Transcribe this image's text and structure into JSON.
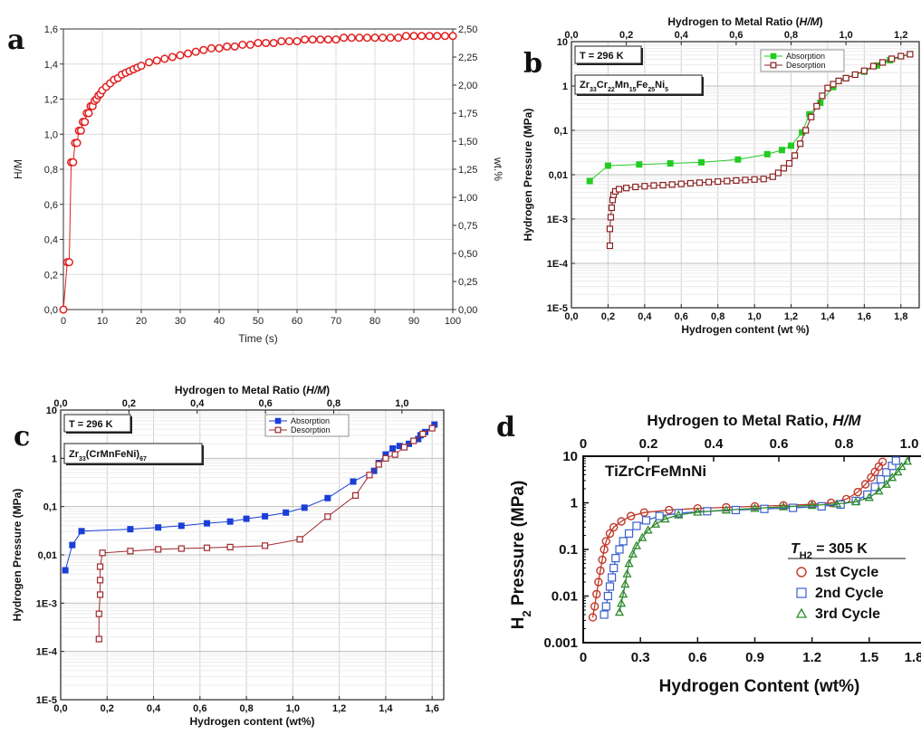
{
  "figure": {
    "panels": [
      {
        "id": "a",
        "label": "a"
      },
      {
        "id": "b",
        "label": "b"
      },
      {
        "id": "c",
        "label": "c"
      },
      {
        "id": "d",
        "label": "d"
      }
    ]
  },
  "chart_data": [
    {
      "id": "a",
      "type": "scatter",
      "title": "",
      "xlabel": "Time (s)",
      "ylabel": "H/M",
      "ylabel_right": "wt.%",
      "xlim": [
        0,
        100
      ],
      "ylim": [
        0,
        1.6
      ],
      "xticks": [
        "0",
        "10",
        "20",
        "30",
        "40",
        "50",
        "60",
        "70",
        "80",
        "90",
        "100"
      ],
      "yticks": [
        "0,0",
        "0,2",
        "0,4",
        "0,6",
        "0,8",
        "1,0",
        "1,2",
        "1,4",
        "1,6"
      ],
      "yticks_right": [
        "0,00",
        "0,25",
        "0,50",
        "0,75",
        "1,00",
        "1,25",
        "1,50",
        "1,75",
        "2,00",
        "2,25",
        "2,50"
      ],
      "grid": true,
      "series_color": "#e02020",
      "series": [
        {
          "x": [
            0,
            1,
            1.5,
            2,
            2.5,
            3,
            3.5,
            4,
            4.5,
            5,
            5.5,
            6,
            6.5,
            7,
            7.5,
            8,
            8.5,
            9,
            9.5,
            10,
            11,
            12,
            13,
            14,
            15,
            16,
            17,
            18,
            19,
            20,
            22,
            24,
            26,
            28,
            30,
            32,
            34,
            36,
            38,
            40,
            42,
            44,
            46,
            48,
            50,
            52,
            54,
            56,
            58,
            60,
            62,
            64,
            66,
            68,
            70,
            72,
            74,
            76,
            78,
            80,
            82,
            84,
            86,
            88,
            90,
            92,
            94,
            96,
            98,
            100
          ],
          "y": [
            0,
            0.27,
            0.27,
            0.84,
            0.84,
            0.95,
            0.95,
            1.02,
            1.02,
            1.07,
            1.07,
            1.12,
            1.12,
            1.16,
            1.16,
            1.19,
            1.2,
            1.22,
            1.23,
            1.25,
            1.27,
            1.29,
            1.31,
            1.32,
            1.34,
            1.35,
            1.36,
            1.37,
            1.38,
            1.39,
            1.41,
            1.42,
            1.43,
            1.44,
            1.45,
            1.46,
            1.47,
            1.48,
            1.49,
            1.49,
            1.5,
            1.5,
            1.51,
            1.51,
            1.52,
            1.52,
            1.52,
            1.53,
            1.53,
            1.53,
            1.54,
            1.54,
            1.54,
            1.54,
            1.54,
            1.55,
            1.55,
            1.55,
            1.55,
            1.55,
            1.55,
            1.55,
            1.55,
            1.56,
            1.56,
            1.56,
            1.56,
            1.56,
            1.56,
            1.56
          ]
        }
      ]
    },
    {
      "id": "b",
      "type": "line",
      "title": "",
      "xlabel": "Hydrogen content (wt %)",
      "ylabel": "Hydrogen Pressure (MPa)",
      "xlabel_top": "Hydrogen to Metal Ratio (H/M)",
      "xlabel_top_main": "Hydrogen to Metal Ratio (",
      "xlabel_top_italic": "H/M",
      "xlabel_top_end": ")",
      "y_scale": "log",
      "xlim": [
        0,
        1.9
      ],
      "ylim": [
        1e-05,
        10
      ],
      "xticks": [
        "0,0",
        "0,2",
        "0,4",
        "0,6",
        "0,8",
        "1,0",
        "1,2",
        "1,4",
        "1,6",
        "1,8"
      ],
      "xticks_top": [
        "0,0",
        "0,2",
        "0,4",
        "0,6",
        "0,8",
        "1,0",
        "1,2"
      ],
      "yticks": [
        "1E-5",
        "1E-4",
        "1E-3",
        "0,01",
        "0,1",
        "1",
        "10"
      ],
      "annotation_temp": "T = 296 K",
      "annotation_alloy": "Zr33Cr22Mn15Fe25Ni5",
      "alloy_parts": [
        [
          "Zr",
          ""
        ],
        [
          "33",
          "sub"
        ],
        [
          "Cr",
          ""
        ],
        [
          "22",
          "sub"
        ],
        [
          "Mn",
          ""
        ],
        [
          "15",
          "sub"
        ],
        [
          "Fe",
          ""
        ],
        [
          "25",
          "sub"
        ],
        [
          "Ni",
          ""
        ],
        [
          "5",
          "sub"
        ]
      ],
      "legend_position": "top-right",
      "series": [
        {
          "name": "Absorption",
          "color": "#22cc22",
          "marker": "filled-square",
          "x": [
            0.1,
            0.2,
            0.37,
            0.54,
            0.71,
            0.91,
            1.07,
            1.15,
            1.2,
            1.26,
            1.3,
            1.36,
            1.43,
            1.46,
            1.5,
            1.55,
            1.6,
            1.67,
            1.74,
            1.85
          ],
          "y": [
            0.0072,
            0.016,
            0.017,
            0.018,
            0.019,
            0.022,
            0.029,
            0.036,
            0.045,
            0.09,
            0.23,
            0.42,
            0.95,
            1.3,
            1.5,
            1.8,
            2.1,
            2.9,
            3.8,
            5.2
          ]
        },
        {
          "name": "Desorption",
          "color": "#8b2020",
          "marker": "open-square",
          "x": [
            0.21,
            0.21,
            0.215,
            0.22,
            0.225,
            0.23,
            0.24,
            0.26,
            0.3,
            0.35,
            0.4,
            0.45,
            0.5,
            0.55,
            0.6,
            0.65,
            0.7,
            0.75,
            0.8,
            0.85,
            0.9,
            0.95,
            1.0,
            1.05,
            1.1,
            1.13,
            1.16,
            1.19,
            1.22,
            1.25,
            1.28,
            1.31,
            1.34,
            1.37,
            1.4,
            1.43,
            1.46,
            1.5,
            1.55,
            1.6,
            1.65,
            1.7,
            1.75,
            1.8,
            1.85
          ],
          "y": [
            0.00025,
            0.0006,
            0.0011,
            0.0018,
            0.0027,
            0.0035,
            0.0042,
            0.0047,
            0.005,
            0.0053,
            0.0055,
            0.0057,
            0.0058,
            0.006,
            0.0062,
            0.0064,
            0.0066,
            0.0068,
            0.007,
            0.0072,
            0.0074,
            0.0076,
            0.0078,
            0.008,
            0.009,
            0.011,
            0.014,
            0.018,
            0.027,
            0.05,
            0.1,
            0.2,
            0.35,
            0.6,
            0.9,
            1.1,
            1.3,
            1.5,
            1.8,
            2.2,
            2.8,
            3.4,
            4.1,
            4.7,
            5.2
          ]
        }
      ]
    },
    {
      "id": "c",
      "type": "line",
      "title": "",
      "xlabel": "Hydrogen content (wt%)",
      "ylabel": "Hydrogen Pressure (MPa)",
      "xlabel_top": "Hydrogen to Metal Ratio (H/M)",
      "xlabel_top_main": "Hydrogen to Metal Ratio (",
      "xlabel_top_italic": "H/M",
      "xlabel_top_end": ")",
      "y_scale": "log",
      "xlim": [
        0,
        1.65
      ],
      "ylim": [
        1e-05,
        10
      ],
      "xticks": [
        "0,0",
        "0,2",
        "0,4",
        "0,6",
        "0,8",
        "1,0",
        "1,2",
        "1,4",
        "1,6"
      ],
      "xticks_top": [
        "0,0",
        "0,2",
        "0,4",
        "0,6",
        "0,8",
        "1,0"
      ],
      "yticks": [
        "1E-5",
        "1E-4",
        "1E-3",
        "0,01",
        "0,1",
        "1",
        "10"
      ],
      "annotation_temp": "T = 296 K",
      "annotation_alloy": "Zr33(CrMnFeNi)67",
      "alloy_parts": [
        [
          "Zr",
          ""
        ],
        [
          "33",
          "sub"
        ],
        [
          "(CrMnFeNi)",
          ""
        ],
        [
          "67",
          "sub"
        ]
      ],
      "legend_position": "top-right",
      "series": [
        {
          "name": "Absorption",
          "color": "#1a3fd6",
          "marker": "filled-square",
          "x": [
            0.02,
            0.05,
            0.09,
            0.3,
            0.42,
            0.52,
            0.63,
            0.73,
            0.8,
            0.88,
            0.97,
            1.05,
            1.15,
            1.26,
            1.35,
            1.37,
            1.4,
            1.43,
            1.46,
            1.5,
            1.54,
            1.55,
            1.57,
            1.61
          ],
          "y": [
            0.0048,
            0.016,
            0.031,
            0.034,
            0.037,
            0.04,
            0.045,
            0.049,
            0.056,
            0.063,
            0.075,
            0.095,
            0.15,
            0.33,
            0.55,
            0.8,
            1.2,
            1.6,
            1.8,
            2.0,
            2.5,
            3.0,
            3.5,
            5.0
          ]
        },
        {
          "name": "Desorption",
          "color": "#a0282c",
          "marker": "open-square",
          "x": [
            0.165,
            0.165,
            0.17,
            0.17,
            0.17,
            0.18,
            0.3,
            0.42,
            0.52,
            0.63,
            0.73,
            0.88,
            1.03,
            1.15,
            1.27,
            1.33,
            1.37,
            1.4,
            1.44,
            1.48,
            1.52,
            1.56,
            1.6
          ],
          "y": [
            0.00018,
            0.0006,
            0.0015,
            0.003,
            0.0057,
            0.011,
            0.012,
            0.013,
            0.0135,
            0.014,
            0.0145,
            0.0155,
            0.021,
            0.062,
            0.17,
            0.45,
            0.75,
            1.0,
            1.2,
            1.7,
            2.3,
            3.2,
            4.2
          ]
        }
      ]
    },
    {
      "id": "d",
      "type": "scatter",
      "title": "",
      "xlabel": "Hydrogen Content (wt%)",
      "ylabel": "H2 Pressure (MPa)",
      "ylabel_main": "H",
      "ylabel_sub": "2",
      "ylabel_end": " Pressure (MPa)",
      "xlabel_top": "Hydrogen to Metal Ratio, H/M",
      "xlabel_top_main": "Hydrogen to Metal Ratio, ",
      "xlabel_top_italic": "H/M",
      "y_scale": "log",
      "xlim": [
        0,
        1.8
      ],
      "ylim": [
        0.001,
        10
      ],
      "xticks": [
        "0",
        "0.3",
        "0.6",
        "0.9",
        "1.2",
        "1.5",
        "1.8"
      ],
      "xticks_top": [
        "0",
        "0.2",
        "0.4",
        "0.6",
        "0.8",
        "1.0"
      ],
      "yticks": [
        "0.001",
        "0.01",
        "0.1",
        "1",
        "10"
      ],
      "annotation_alloy": "TiZrCrFeMnNi",
      "legend_title": "TH2 = 305 K",
      "legend_title_main": "T",
      "legend_title_sub": "H2",
      "legend_title_end": " = 305 K",
      "legend_position": "bottom-right",
      "series": [
        {
          "name": "1st Cycle",
          "color": "#c0392b",
          "marker": "open-circle",
          "x": [
            0.05,
            0.06,
            0.07,
            0.08,
            0.09,
            0.1,
            0.11,
            0.12,
            0.14,
            0.16,
            0.2,
            0.25,
            0.32,
            0.45,
            0.6,
            0.75,
            0.9,
            1.05,
            1.2,
            1.3,
            1.38,
            1.44,
            1.48,
            1.51,
            1.53,
            1.55,
            1.57
          ],
          "y": [
            0.0035,
            0.006,
            0.011,
            0.02,
            0.035,
            0.06,
            0.1,
            0.15,
            0.22,
            0.3,
            0.4,
            0.52,
            0.62,
            0.7,
            0.76,
            0.8,
            0.84,
            0.88,
            0.93,
            1.0,
            1.2,
            1.7,
            2.5,
            3.5,
            4.6,
            6.0,
            7.6
          ]
        },
        {
          "name": "2nd Cycle",
          "color": "#3a5fcd",
          "marker": "open-square",
          "x": [
            0.11,
            0.12,
            0.13,
            0.14,
            0.15,
            0.16,
            0.17,
            0.19,
            0.21,
            0.24,
            0.28,
            0.33,
            0.4,
            0.5,
            0.65,
            0.8,
            0.95,
            1.1,
            1.25,
            1.35,
            1.43,
            1.49,
            1.53,
            1.56,
            1.59,
            1.62,
            1.64
          ],
          "y": [
            0.004,
            0.006,
            0.01,
            0.016,
            0.025,
            0.04,
            0.065,
            0.1,
            0.15,
            0.22,
            0.32,
            0.42,
            0.52,
            0.6,
            0.66,
            0.7,
            0.74,
            0.78,
            0.84,
            0.92,
            1.1,
            1.5,
            2.2,
            3.2,
            4.5,
            6.2,
            8.0
          ]
        },
        {
          "name": "3rd Cycle",
          "color": "#2e8b2e",
          "marker": "open-triangle",
          "x": [
            0.19,
            0.2,
            0.21,
            0.22,
            0.23,
            0.24,
            0.26,
            0.28,
            0.31,
            0.34,
            0.38,
            0.43,
            0.5,
            0.6,
            0.75,
            0.9,
            1.05,
            1.2,
            1.33,
            1.43,
            1.5,
            1.55,
            1.59,
            1.62,
            1.65,
            1.67,
            1.7
          ],
          "y": [
            0.0045,
            0.007,
            0.011,
            0.018,
            0.03,
            0.05,
            0.08,
            0.12,
            0.18,
            0.26,
            0.35,
            0.45,
            0.55,
            0.63,
            0.7,
            0.76,
            0.82,
            0.88,
            0.95,
            1.05,
            1.3,
            1.8,
            2.5,
            3.5,
            4.6,
            6.0,
            7.8
          ]
        }
      ]
    }
  ]
}
